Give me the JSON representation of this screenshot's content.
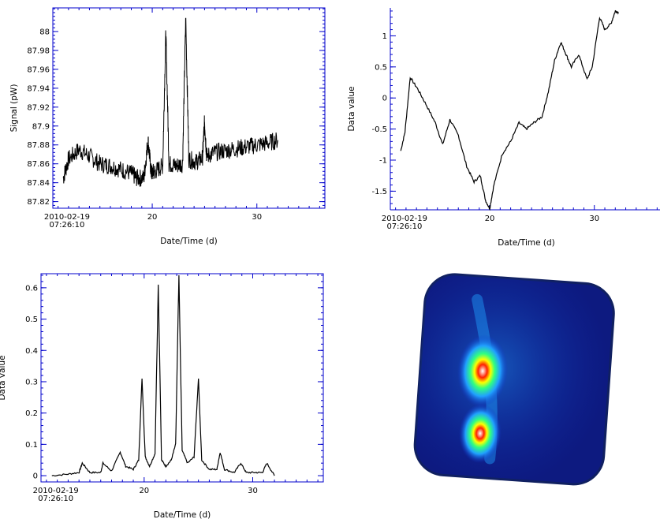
{
  "chart_data": [
    {
      "type": "line",
      "xlabel": "Date/Time (d)",
      "ylabel": "Signal (pW)",
      "start_label": [
        "2010-02-19",
        "07:26:10"
      ],
      "x_ticks": [
        20,
        30
      ],
      "y_ticks": [
        "87.82",
        "87.84",
        "87.86",
        "87.88",
        "87.9",
        "87.92",
        "87.94",
        "87.96",
        "87.98",
        "88"
      ],
      "xlim": [
        10.5,
        36.5
      ],
      "ylim": [
        87.813,
        88.025
      ],
      "series": [
        {
          "x": [
            11.5,
            12,
            13,
            14,
            15,
            16,
            17,
            18,
            18.5,
            19.2,
            19.6,
            19.9,
            20.3,
            21.0,
            21.3,
            21.6,
            22.2,
            22.9,
            23.2,
            23.5,
            24.2,
            24.8,
            25.0,
            25.2,
            26,
            27,
            28,
            29,
            30,
            31,
            32
          ],
          "y": [
            87.845,
            87.865,
            87.875,
            87.868,
            87.86,
            87.858,
            87.854,
            87.85,
            87.845,
            87.845,
            87.885,
            87.85,
            87.852,
            87.858,
            88.0,
            87.86,
            87.858,
            87.86,
            88.015,
            87.865,
            87.862,
            87.866,
            87.905,
            87.868,
            87.872,
            87.874,
            87.876,
            87.878,
            87.88,
            87.882,
            87.885
          ]
        }
      ],
      "border_color": "#0000cc"
    },
    {
      "type": "line",
      "xlabel": "Date/Time (d)",
      "ylabel": "Data value",
      "start_label": [
        "2010-02-19",
        "07:26:10"
      ],
      "x_ticks": [
        20,
        30
      ],
      "y_ticks": [
        "-1.5",
        "-1",
        "-0.5",
        "0",
        "0.5",
        "1"
      ],
      "xlim": [
        10.5,
        36.5
      ],
      "ylim": [
        -1.8,
        1.45
      ],
      "series": [
        {
          "x": [
            11.5,
            11.9,
            12.4,
            13.1,
            13.9,
            14.8,
            15.5,
            16.2,
            17.0,
            17.8,
            18.5,
            19.1,
            19.6,
            20.0,
            20.4,
            21.2,
            22.0,
            22.8,
            23.5,
            24.2,
            25.0,
            25.6,
            26.2,
            26.8,
            27.3,
            27.8,
            28.5,
            29.3,
            29.8,
            30.5,
            31.0,
            31.6,
            32.0,
            32.3
          ],
          "y": [
            -0.85,
            -0.55,
            0.33,
            0.15,
            -0.1,
            -0.4,
            -0.75,
            -0.35,
            -0.6,
            -1.1,
            -1.35,
            -1.25,
            -1.65,
            -1.78,
            -1.4,
            -0.9,
            -0.7,
            -0.4,
            -0.5,
            -0.4,
            -0.3,
            0.1,
            0.6,
            0.9,
            0.7,
            0.5,
            0.7,
            0.3,
            0.5,
            1.3,
            1.1,
            1.2,
            1.4,
            1.38
          ]
        }
      ],
      "border_color": "#0000cc"
    },
    {
      "type": "line",
      "xlabel": "Date/Time (d)",
      "ylabel": "Data value",
      "start_label": [
        "2010-02-19",
        "07:26:10"
      ],
      "x_ticks": [
        20,
        30
      ],
      "y_ticks": [
        "0",
        "0.1",
        "0.2",
        "0.3",
        "0.4",
        "0.5",
        "0.6"
      ],
      "xlim": [
        10.5,
        36.5
      ],
      "ylim": [
        -0.02,
        0.645
      ],
      "series": [
        {
          "x": [
            11.5,
            13,
            14,
            14.3,
            15,
            16,
            16.2,
            17,
            17.8,
            18.3,
            19.0,
            19.5,
            19.8,
            20.1,
            20.5,
            21.0,
            21.3,
            21.6,
            22.0,
            22.5,
            22.9,
            23.2,
            23.5,
            24.0,
            24.6,
            25.0,
            25.3,
            26.0,
            26.7,
            27.0,
            27.4,
            28.3,
            28.9,
            29.4,
            30.2,
            30.9,
            31.3,
            32.0
          ],
          "y": [
            0.0,
            0.005,
            0.01,
            0.04,
            0.01,
            0.01,
            0.04,
            0.015,
            0.075,
            0.03,
            0.02,
            0.05,
            0.31,
            0.06,
            0.03,
            0.07,
            0.61,
            0.05,
            0.03,
            0.05,
            0.1,
            0.64,
            0.08,
            0.04,
            0.06,
            0.31,
            0.05,
            0.02,
            0.02,
            0.075,
            0.02,
            0.01,
            0.04,
            0.01,
            0.01,
            0.01,
            0.04,
            0.0
          ]
        }
      ],
      "border_color": "#0000cc"
    },
    {
      "type": "heatmap",
      "colormap": [
        "#0a0a78",
        "#1030c8",
        "#20a0ff",
        "#30ff80",
        "#ffff00",
        "#ff2000",
        "#ffffff"
      ],
      "background_color": "#0d1a80",
      "peaks": [
        {
          "cx": 0.33,
          "cy": 0.47,
          "level": 1.0
        },
        {
          "cx": 0.34,
          "cy": 0.78,
          "level": 0.8
        }
      ]
    }
  ]
}
